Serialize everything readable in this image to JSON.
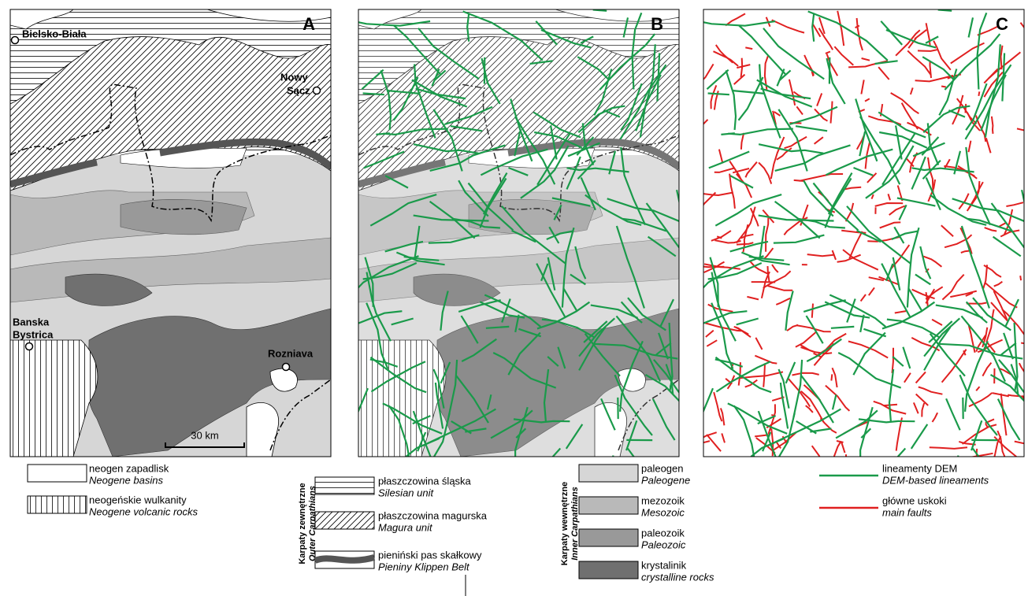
{
  "panels": [
    {
      "label": "A"
    },
    {
      "label": "B"
    },
    {
      "label": "C"
    }
  ],
  "places": [
    {
      "lines": [
        "Bielsko-Biała"
      ]
    },
    {
      "lines": [
        "Nowy",
        "Sącz"
      ]
    },
    {
      "lines": [
        "Banska",
        "Bystrica"
      ]
    },
    {
      "lines": [
        "Rozniava"
      ]
    }
  ],
  "scale_bar": "30 km",
  "legend": {
    "general": [
      {
        "pl": "neogen zapadlisk",
        "en": "Neogene basins"
      },
      {
        "pl": "neogeńskie wulkanity",
        "en": "Neogene volcanic rocks"
      }
    ],
    "outer": {
      "pl": "Karpaty zewnętrzne",
      "en": "Outer Carpathians",
      "items": [
        {
          "pl": "płaszczowina śląska",
          "en": "Silesian unit"
        },
        {
          "pl": "płaszczowina magurska",
          "en": "Magura unit"
        },
        {
          "pl": "pieniński pas skałkowy",
          "en": "Pieniny Klippen Belt"
        }
      ]
    },
    "inner": {
      "pl": "Karpaty wewnętrzne",
      "en": "Inner Carpathians",
      "items": [
        {
          "pl": "paleogen",
          "en": "Paleogene"
        },
        {
          "pl": "mezozoik",
          "en": "Mesozoic"
        },
        {
          "pl": "paleozoik",
          "en": "Paleozoic"
        },
        {
          "pl": "krystalinik",
          "en": "crystalline rocks"
        }
      ]
    },
    "lines": [
      {
        "pl": "lineamenty DEM",
        "en": "DEM-based lineaments"
      },
      {
        "pl": "główne uskoki",
        "en": "main faults"
      }
    ]
  }
}
